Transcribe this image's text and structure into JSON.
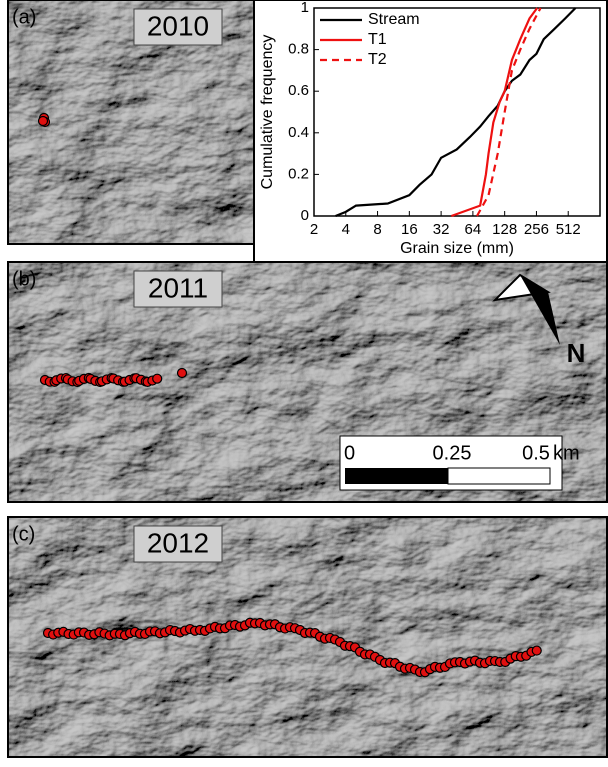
{
  "panels": [
    {
      "label": "(a)",
      "year": "2010"
    },
    {
      "label": "(b)",
      "year": "2011"
    },
    {
      "label": "(c)",
      "year": "2012"
    }
  ],
  "scale_bar": {
    "ticks": [
      "0",
      "0.25",
      "0.5"
    ],
    "unit": "km"
  },
  "north_label": "N",
  "chart_data": {
    "type": "line",
    "xlabel": "Grain size (mm)",
    "ylabel": "Cumulative frequency",
    "xscale": "log2",
    "xlim": [
      2,
      1024
    ],
    "xticks": [
      2,
      4,
      8,
      16,
      32,
      64,
      128,
      256,
      512
    ],
    "ylim": [
      0,
      1
    ],
    "yticks": [
      0,
      0.2,
      0.4,
      0.6,
      0.8,
      1
    ],
    "legend": "upper left",
    "series": [
      {
        "name": "Stream",
        "color": "#000000",
        "dash": false,
        "x": [
          3.2,
          4,
          5,
          10,
          16,
          20,
          26,
          32,
          45,
          60,
          75,
          90,
          110,
          128,
          150,
          180,
          220,
          256,
          300,
          380,
          480,
          600
        ],
        "values": [
          0,
          0.02,
          0.05,
          0.06,
          0.1,
          0.15,
          0.2,
          0.28,
          0.32,
          0.38,
          0.43,
          0.48,
          0.53,
          0.6,
          0.65,
          0.68,
          0.75,
          0.78,
          0.85,
          0.9,
          0.95,
          1
        ]
      },
      {
        "name": "T1",
        "color": "#ee1111",
        "dash": false,
        "x": [
          40,
          75,
          85,
          90,
          100,
          115,
          128,
          150,
          180,
          220,
          260
        ],
        "values": [
          0,
          0.05,
          0.2,
          0.3,
          0.45,
          0.55,
          0.6,
          0.75,
          0.85,
          0.95,
          1
        ]
      },
      {
        "name": "T2",
        "color": "#ee1111",
        "dash": true,
        "x": [
          70,
          90,
          110,
          128,
          150,
          180,
          220,
          280
        ],
        "values": [
          0,
          0.1,
          0.3,
          0.5,
          0.7,
          0.8,
          0.9,
          1
        ]
      }
    ]
  }
}
